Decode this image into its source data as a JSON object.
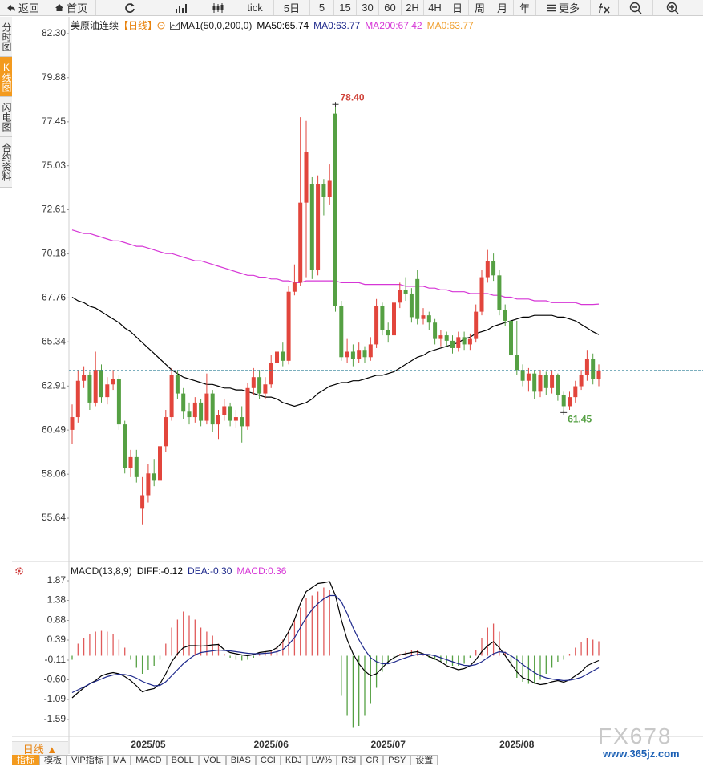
{
  "toolbar": [
    "返回",
    "首页",
    "tick",
    "5日",
    "5",
    "15",
    "30",
    "60",
    "2H",
    "4H",
    "日",
    "周",
    "月",
    "年",
    "更多"
  ],
  "sidebar": [
    "分时图",
    "K线图",
    "闪电图",
    "合约资料"
  ],
  "chart_data": [
    {
      "type": "candlestick",
      "title": "美原油连续",
      "period": "【日线】",
      "legend": [
        "MA1(50,0,200,0)",
        "MA0:63.77",
        "MA0:63.77"
      ],
      "categories": [
        null,
        null,
        null,
        null,
        null,
        null,
        null,
        null,
        null,
        null,
        null,
        null,
        null,
        "2025/05",
        null,
        null,
        null,
        null,
        null,
        null,
        null,
        null,
        null,
        null,
        null,
        null,
        null,
        null,
        null,
        null,
        null,
        null,
        null,
        null,
        "2025/06",
        null,
        null,
        null,
        null,
        null,
        null,
        null,
        null,
        null,
        null,
        null,
        null,
        null,
        null,
        null,
        null,
        null,
        null,
        null,
        "2025/07",
        null,
        null,
        null,
        null,
        null,
        null,
        null,
        null,
        null,
        null,
        null,
        null,
        null,
        null,
        null,
        null,
        null,
        null,
        null,
        null,
        null,
        "2025/08",
        null,
        null,
        null,
        null,
        null,
        null,
        null,
        null,
        null,
        null,
        null,
        null,
        null,
        null
      ],
      "open": [
        60.5,
        61.2,
        63.2,
        63.5,
        62.0,
        63.8,
        62.3,
        63.0,
        63.3,
        60.8,
        58.4,
        59.0,
        56.2,
        56.9,
        58.1,
        57.7,
        59.6,
        61.2,
        63.5,
        62.5,
        61.5,
        61.2,
        62.0,
        61.0,
        62.5,
        60.8,
        61.3,
        61.8,
        61.0,
        61.2,
        60.7,
        62.8,
        63.4,
        62.5,
        63.0,
        64.2,
        64.8,
        64.3,
        68.1,
        68.6,
        73.0,
        74.0,
        69.3,
        74.0,
        73.3,
        77.9,
        67.3,
        64.5,
        64.8,
        64.4,
        64.9,
        64.5,
        65.2,
        67.3,
        66.0,
        65.7,
        67.5,
        68.2,
        68.0,
        68.8,
        66.6,
        66.8,
        66.4,
        65.5,
        65.7,
        65.4,
        65.0,
        65.6,
        65.2,
        65.5,
        67.0,
        68.9,
        69.8,
        69.0,
        67.1,
        66.5,
        64.6,
        63.8,
        63.2,
        63.6,
        62.6,
        63.5,
        62.8,
        63.5,
        62.4,
        61.8,
        62.3,
        62.9,
        63.5,
        64.4,
        63.3
      ],
      "high": [
        61.9,
        63.8,
        64.0,
        63.7,
        64.8,
        64.1,
        63.4,
        63.8,
        63.5,
        61.0,
        59.4,
        59.4,
        57.9,
        58.6,
        58.9,
        60.0,
        61.6,
        63.9,
        63.8,
        62.8,
        62.0,
        62.3,
        62.2,
        63.6,
        62.7,
        61.6,
        62.2,
        62.0,
        61.6,
        61.8,
        63.1,
        63.9,
        63.8,
        63.4,
        64.6,
        65.4,
        65.3,
        68.4,
        69.6,
        77.7,
        77.5,
        74.4,
        74.5,
        74.3,
        75.1,
        78.4,
        67.6,
        65.5,
        65.2,
        65.3,
        65.1,
        65.6,
        67.7,
        67.5,
        66.4,
        67.9,
        68.6,
        68.9,
        68.3,
        69.3,
        67.2,
        67.0,
        66.6,
        66.0,
        65.9,
        65.7,
        65.9,
        65.9,
        65.8,
        67.4,
        69.3,
        70.4,
        70.2,
        69.3,
        67.4,
        66.8,
        66.5,
        64.1,
        63.9,
        63.8,
        63.8,
        63.7,
        63.8,
        63.6,
        62.6,
        62.6,
        63.2,
        63.8,
        64.9,
        64.7,
        64.1
      ],
      "low": [
        59.7,
        60.9,
        62.8,
        61.6,
        61.8,
        62.0,
        61.9,
        62.7,
        60.5,
        58.1,
        57.9,
        57.6,
        55.3,
        56.5,
        57.4,
        57.5,
        59.3,
        61.0,
        62.2,
        61.1,
        60.8,
        60.9,
        60.7,
        60.8,
        60.4,
        60.0,
        61.0,
        60.7,
        60.6,
        59.8,
        60.5,
        62.4,
        62.2,
        62.2,
        62.8,
        63.9,
        64.0,
        64.1,
        67.9,
        68.4,
        68.9,
        68.8,
        69.0,
        72.3,
        72.9,
        67.0,
        64.3,
        64.2,
        64.0,
        64.2,
        64.2,
        64.3,
        65.0,
        65.7,
        65.3,
        65.5,
        67.2,
        67.6,
        66.4,
        66.3,
        66.3,
        66.0,
        65.2,
        65.1,
        65.1,
        64.7,
        64.8,
        64.9,
        64.9,
        65.3,
        66.8,
        68.6,
        68.7,
        66.8,
        66.2,
        64.3,
        63.5,
        62.9,
        62.6,
        62.2,
        62.3,
        62.4,
        62.5,
        62.1,
        61.45,
        61.6,
        62.0,
        62.7,
        63.2,
        63.0,
        62.9
      ],
      "close": [
        61.2,
        63.2,
        63.5,
        62.0,
        63.8,
        62.3,
        63.0,
        63.3,
        60.8,
        58.4,
        59.0,
        57.9,
        56.9,
        58.1,
        57.7,
        59.6,
        61.2,
        63.5,
        62.5,
        61.5,
        61.2,
        62.0,
        61.0,
        62.5,
        60.8,
        61.3,
        61.8,
        61.0,
        61.2,
        60.7,
        62.8,
        63.4,
        62.5,
        63.0,
        64.2,
        64.8,
        64.3,
        68.1,
        68.6,
        73.0,
        75.8,
        69.3,
        74.0,
        73.3,
        74.2,
        67.3,
        64.5,
        64.8,
        64.4,
        64.9,
        64.5,
        65.2,
        67.3,
        66.0,
        65.7,
        67.5,
        68.2,
        68.0,
        66.7,
        66.6,
        66.8,
        66.4,
        65.5,
        65.7,
        65.4,
        65.0,
        65.6,
        65.2,
        65.5,
        67.0,
        68.9,
        69.8,
        69.0,
        67.1,
        66.5,
        64.6,
        63.8,
        63.2,
        63.6,
        62.6,
        63.5,
        62.8,
        63.5,
        62.4,
        61.8,
        62.3,
        62.9,
        63.5,
        64.4,
        63.3,
        63.77
      ],
      "up_color": "#e2453c",
      "down_color": "#55a043",
      "last_line_color": "#2f7f96",
      "series": [
        {
          "name": "MA50:65.74",
          "color": "#000000",
          "values": [
            67.8,
            67.6,
            67.5,
            67.3,
            67.2,
            67.0,
            66.8,
            66.6,
            66.4,
            66.1,
            65.9,
            65.6,
            65.3,
            65.0,
            64.7,
            64.4,
            64.1,
            63.8,
            63.6,
            63.4,
            63.3,
            63.2,
            63.1,
            63.0,
            63.0,
            62.9,
            62.8,
            62.8,
            62.7,
            62.7,
            62.6,
            62.5,
            62.4,
            62.3,
            62.3,
            62.2,
            62.0,
            61.9,
            61.8,
            61.9,
            62.0,
            62.2,
            62.5,
            62.7,
            62.9,
            63.0,
            63.1,
            63.1,
            63.2,
            63.2,
            63.3,
            63.4,
            63.5,
            63.5,
            63.6,
            63.7,
            63.9,
            64.1,
            64.3,
            64.5,
            64.6,
            64.8,
            64.9,
            65.0,
            65.1,
            65.2,
            65.3,
            65.5,
            65.6,
            65.8,
            65.9,
            66.0,
            66.2,
            66.3,
            66.4,
            66.5,
            66.6,
            66.7,
            66.7,
            66.8,
            66.8,
            66.8,
            66.8,
            66.7,
            66.7,
            66.6,
            66.5,
            66.3,
            66.1,
            65.9,
            65.74
          ]
        },
        {
          "name": "MA200:67.42",
          "color": "#d636d6",
          "values": [
            71.5,
            71.4,
            71.3,
            71.3,
            71.2,
            71.1,
            71.0,
            70.9,
            70.9,
            70.8,
            70.7,
            70.6,
            70.6,
            70.5,
            70.4,
            70.3,
            70.2,
            70.2,
            70.1,
            70.0,
            69.9,
            69.8,
            69.8,
            69.7,
            69.6,
            69.5,
            69.4,
            69.3,
            69.2,
            69.1,
            69.0,
            69.0,
            68.9,
            68.9,
            68.8,
            68.8,
            68.7,
            68.7,
            68.6,
            68.6,
            68.7,
            68.7,
            68.7,
            68.7,
            68.7,
            68.7,
            68.6,
            68.6,
            68.6,
            68.6,
            68.5,
            68.5,
            68.5,
            68.5,
            68.5,
            68.5,
            68.5,
            68.4,
            68.4,
            68.4,
            68.4,
            68.3,
            68.3,
            68.2,
            68.2,
            68.1,
            68.1,
            68.1,
            68.0,
            68.0,
            68.0,
            68.0,
            67.9,
            67.9,
            67.8,
            67.8,
            67.7,
            67.7,
            67.7,
            67.6,
            67.6,
            67.6,
            67.5,
            67.5,
            67.5,
            67.5,
            67.5,
            67.4,
            67.4,
            67.4,
            67.42
          ]
        }
      ],
      "ylim": [
        53.7,
        83.18
      ],
      "yticks": [
        {
          "value": 82.3,
          "label": "82.30"
        },
        79.88,
        77.45,
        75.03,
        72.61,
        70.18,
        67.76,
        65.34,
        62.91,
        60.49,
        58.06,
        55.64
      ],
      "max_label": {
        "value": 78.4,
        "label": "78.40"
      },
      "min_label": 61.45
    },
    {
      "type": "macd",
      "title": "MACD(13,8,9)",
      "histogram": {
        "name": "MACD:0.36",
        "up_color": "#e05a5a",
        "down_color": "#55a043",
        "values": [
          -0.1,
          0.3,
          0.45,
          0.55,
          0.6,
          0.62,
          0.6,
          0.55,
          0.4,
          0.2,
          -0.1,
          -0.3,
          -0.45,
          -0.35,
          -0.25,
          -0.1,
          0.3,
          0.7,
          0.9,
          1.1,
          1.0,
          0.9,
          0.7,
          0.6,
          0.5,
          0.3,
          0.05,
          -0.05,
          -0.1,
          -0.12,
          -0.1,
          -0.05,
          0.05,
          0.1,
          0.15,
          0.25,
          0.4,
          0.65,
          0.9,
          1.2,
          1.45,
          1.5,
          1.6,
          1.7,
          1.65,
          0.0,
          -1.0,
          -1.5,
          -1.8,
          -1.75,
          -1.5,
          -1.2,
          -0.8,
          -0.4,
          -0.2,
          -0.1,
          0.05,
          0.1,
          0.15,
          0.14,
          0.05,
          -0.05,
          -0.1,
          -0.15,
          -0.2,
          -0.25,
          -0.25,
          -0.2,
          -0.05,
          0.15,
          0.45,
          0.7,
          0.8,
          0.6,
          0.1,
          -0.3,
          -0.55,
          -0.65,
          -0.7,
          -0.7,
          -0.6,
          -0.45,
          -0.3,
          -0.15,
          -0.1,
          0.05,
          0.2,
          0.35,
          0.45,
          0.4,
          0.36
        ]
      },
      "series": [
        {
          "name": "DIFF:-0.12",
          "color": "#000000",
          "values": [
            -1.05,
            -0.92,
            -0.8,
            -0.7,
            -0.62,
            -0.5,
            -0.45,
            -0.42,
            -0.45,
            -0.52,
            -0.62,
            -0.75,
            -0.9,
            -0.85,
            -0.82,
            -0.7,
            -0.45,
            -0.15,
            0.05,
            0.2,
            0.25,
            0.25,
            0.24,
            0.25,
            0.27,
            0.28,
            0.15,
            0.08,
            0.05,
            0.02,
            0.0,
            0.03,
            0.08,
            0.1,
            0.12,
            0.2,
            0.35,
            0.6,
            0.9,
            1.3,
            1.6,
            1.7,
            1.8,
            1.82,
            1.85,
            1.5,
            0.9,
            0.4,
            0.05,
            -0.2,
            -0.38,
            -0.5,
            -0.45,
            -0.3,
            -0.15,
            -0.05,
            0.02,
            0.05,
            0.08,
            0.1,
            0.05,
            -0.02,
            -0.08,
            -0.15,
            -0.25,
            -0.3,
            -0.35,
            -0.32,
            -0.25,
            -0.1,
            0.1,
            0.25,
            0.35,
            0.2,
            0.0,
            -0.2,
            -0.4,
            -0.55,
            -0.6,
            -0.68,
            -0.72,
            -0.7,
            -0.65,
            -0.62,
            -0.66,
            -0.6,
            -0.5,
            -0.4,
            -0.25,
            -0.18,
            -0.12
          ]
        },
        {
          "name": "DEA:-0.30",
          "color": "#1f2a8c",
          "values": [
            -0.92,
            -0.85,
            -0.78,
            -0.7,
            -0.64,
            -0.58,
            -0.52,
            -0.48,
            -0.46,
            -0.47,
            -0.5,
            -0.56,
            -0.64,
            -0.7,
            -0.75,
            -0.74,
            -0.65,
            -0.5,
            -0.35,
            -0.2,
            -0.08,
            0.02,
            0.08,
            0.1,
            0.12,
            0.14,
            0.13,
            0.12,
            0.1,
            0.08,
            0.06,
            0.05,
            0.05,
            0.06,
            0.07,
            0.1,
            0.15,
            0.28,
            0.45,
            0.7,
            0.95,
            1.15,
            1.3,
            1.42,
            1.5,
            1.5,
            1.35,
            1.05,
            0.7,
            0.4,
            0.15,
            -0.05,
            -0.15,
            -0.2,
            -0.2,
            -0.16,
            -0.1,
            -0.05,
            0.0,
            0.03,
            0.04,
            0.03,
            0.0,
            -0.05,
            -0.1,
            -0.15,
            -0.2,
            -0.24,
            -0.25,
            -0.22,
            -0.15,
            -0.05,
            0.05,
            0.1,
            0.08,
            0.0,
            -0.1,
            -0.22,
            -0.32,
            -0.42,
            -0.5,
            -0.55,
            -0.58,
            -0.6,
            -0.62,
            -0.61,
            -0.58,
            -0.54,
            -0.46,
            -0.38,
            -0.3
          ]
        }
      ],
      "ylim": [
        -1.95,
        2.25
      ],
      "yticks": [
        1.87,
        1.38,
        0.88,
        0.39,
        -0.11,
        {
          "value": -0.6,
          "label": "-0.60"
        },
        -1.09,
        -1.59
      ]
    }
  ],
  "period_tab": "日线 ▲",
  "tabs": [
    "指标",
    "模板",
    "VIP指标",
    "MA",
    "MACD",
    "BOLL",
    "VOL",
    "BIAS",
    "CCI",
    "KDJ",
    "LW%",
    "RSI",
    "CR",
    "PSY",
    "设置"
  ],
  "watermark": {
    "brand": "FX678",
    "site": "www.365jz.com"
  }
}
